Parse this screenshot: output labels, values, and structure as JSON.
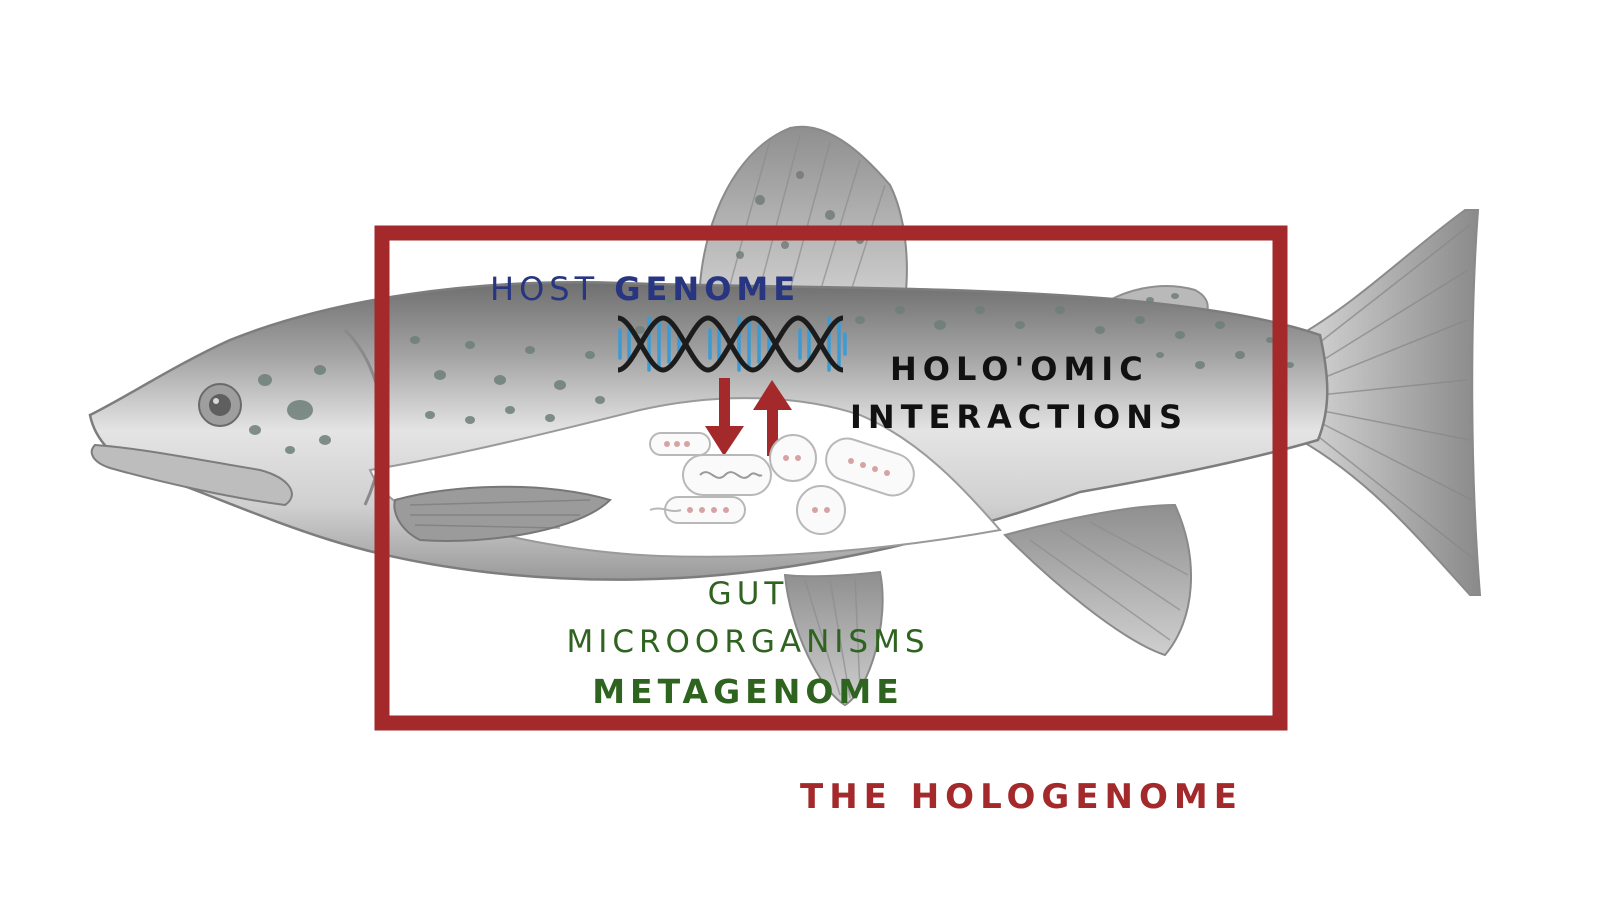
{
  "labels": {
    "host_prefix": "HOST",
    "host_strong": "GENOME",
    "interactions_line1": "HOLO'OMIC",
    "interactions_line2": "INTERACTIONS",
    "gut_line1": "GUT",
    "gut_line2": "MICROORGANISMS",
    "gut_line3": "METAGENOME",
    "title": "THE HOLOGENOME"
  },
  "colors": {
    "frame": "#a3292b",
    "host_text": "#283580",
    "gut_text": "#2f6320",
    "dna_strand": "#1c1c1c",
    "dna_rungs": "#3e9ad3",
    "arrows": "#a3292b",
    "fish_body": "#b8b8b8",
    "fish_spots": "#6d7f79"
  },
  "icons": [
    "fish-illustration",
    "dna-helix-icon",
    "down-arrow",
    "up-arrow",
    "bacteria-icons"
  ]
}
